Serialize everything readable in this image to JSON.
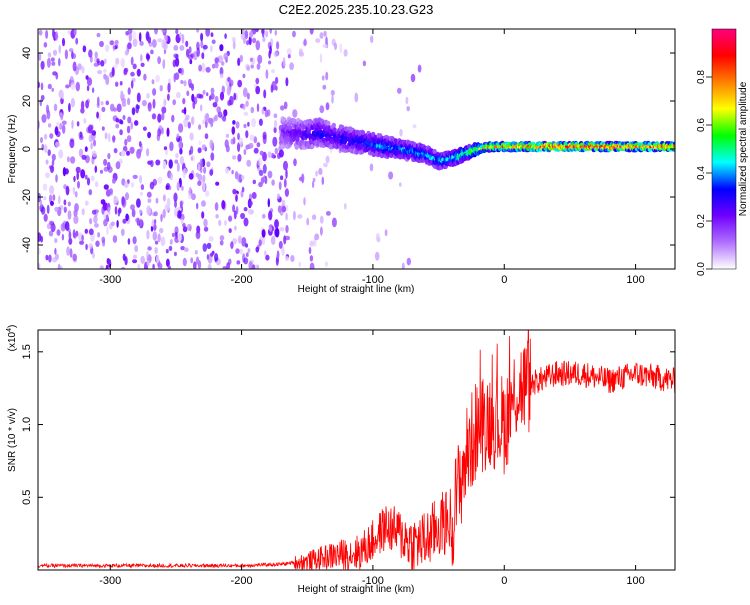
{
  "title": "C2E2.2025.235.10.23.G23",
  "chart_data": [
    {
      "type": "heatmap",
      "xlabel": "Height of straight line (km)",
      "ylabel": "Frequency (Hz)",
      "xlim": [
        -355,
        130
      ],
      "ylim": [
        -50,
        50
      ],
      "xticks": [
        -300,
        -200,
        -100,
        0,
        100
      ],
      "yticks": [
        -40,
        -20,
        0,
        20,
        40
      ],
      "colorbar": {
        "label": "Normalized spectral amplitude",
        "range": [
          0.0,
          1.0
        ],
        "ticks": [
          0.0,
          0.2,
          0.4,
          0.6,
          0.8
        ],
        "colors": [
          "#ffffff",
          "#b070ff",
          "#7000ff",
          "#0000ff",
          "#00ffff",
          "#00ff00",
          "#ffff00",
          "#ff8000",
          "#ff0000",
          "#ff0080"
        ]
      },
      "signal_track": {
        "height_km": [
          -170,
          -150,
          -140,
          -130,
          -120,
          -110,
          -100,
          -90,
          -80,
          -70,
          -60,
          -50,
          -40,
          -30,
          -20,
          -10,
          0,
          10,
          20,
          40,
          60,
          80,
          100,
          130
        ],
        "frequency_hz": [
          7,
          6,
          7,
          5,
          4,
          3,
          2,
          1,
          0,
          -1,
          -2,
          -5,
          -4,
          -2,
          0,
          1,
          1,
          1,
          1,
          1,
          1,
          1,
          1,
          1
        ],
        "amplitude": [
          0.2,
          0.3,
          0.35,
          0.3,
          0.35,
          0.35,
          0.4,
          0.45,
          0.4,
          0.45,
          0.45,
          0.45,
          0.5,
          0.6,
          0.7,
          0.8,
          0.85,
          0.9,
          0.9,
          0.95,
          0.95,
          0.95,
          0.9,
          0.9
        ]
      }
    },
    {
      "type": "line",
      "xlabel": "Height of straight line (km)",
      "ylabel": "SNR (10 * v/v)",
      "yscale_label": "(x10^4)",
      "xlim": [
        -355,
        130
      ],
      "ylim": [
        0,
        1.65
      ],
      "xticks": [
        -300,
        -200,
        -100,
        0,
        100
      ],
      "yticks": [
        0.5,
        1.0,
        1.5
      ],
      "yticklabels": [
        "0.5",
        "1.0",
        "1.5"
      ],
      "color": "#ff0000",
      "x": [
        -355,
        -300,
        -250,
        -200,
        -170,
        -150,
        -130,
        -110,
        -100,
        -90,
        -80,
        -70,
        -60,
        -50,
        -40,
        -30,
        -20,
        -10,
        0,
        10,
        20,
        40,
        60,
        80,
        100,
        130
      ],
      "y": [
        0.03,
        0.03,
        0.03,
        0.03,
        0.04,
        0.06,
        0.1,
        0.12,
        0.2,
        0.3,
        0.25,
        0.18,
        0.2,
        0.3,
        0.35,
        0.75,
        1.0,
        1.05,
        1.0,
        1.25,
        1.28,
        1.35,
        1.35,
        1.3,
        1.35,
        1.3
      ]
    }
  ]
}
